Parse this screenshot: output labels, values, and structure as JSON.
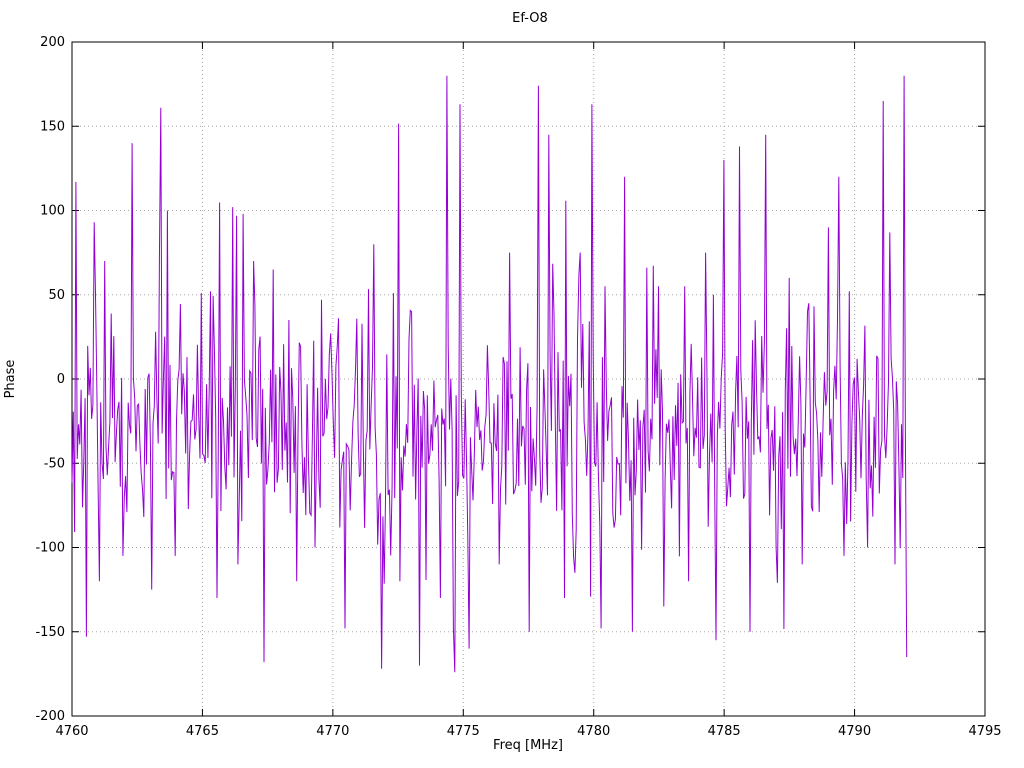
{
  "title": "Ef-O8",
  "chart_data": {
    "type": "line",
    "title": "Ef-O8",
    "xlabel": "Freq [MHz]",
    "ylabel": "Phase",
    "xlim": [
      4760,
      4795
    ],
    "ylim": [
      -200,
      200
    ],
    "xticks": [
      4760,
      4765,
      4770,
      4775,
      4780,
      4785,
      4790,
      4795
    ],
    "yticks": [
      -200,
      -150,
      -100,
      -50,
      0,
      50,
      100,
      150,
      200
    ],
    "grid": "dotted",
    "legend": "none",
    "series": [
      {
        "name": "phase",
        "color": "#9400D3",
        "x_start": 4760.0,
        "x_end": 4792.0,
        "n_points": 640,
        "noise_mean": -30,
        "noise_std": 33,
        "heavy_tail_prob": 0.08,
        "heavy_tail_scale": 2.1,
        "seed": 42,
        "clip": [
          -174,
          181
        ],
        "spikes": [
          [
            4760.15,
            117
          ],
          [
            4760.55,
            -153
          ],
          [
            4760.85,
            93
          ],
          [
            4761.05,
            -120
          ],
          [
            4761.25,
            70
          ],
          [
            4761.95,
            -105
          ],
          [
            4762.3,
            140
          ],
          [
            4763.05,
            -125
          ],
          [
            4763.4,
            161
          ],
          [
            4763.65,
            100
          ],
          [
            4763.95,
            -105
          ],
          [
            4764.95,
            51
          ],
          [
            4765.3,
            52
          ],
          [
            4765.55,
            -130
          ],
          [
            4766.15,
            102
          ],
          [
            4766.35,
            -110
          ],
          [
            4766.55,
            98
          ],
          [
            4766.95,
            70
          ],
          [
            4767.35,
            -168
          ],
          [
            4767.7,
            65
          ],
          [
            4768.3,
            35
          ],
          [
            4768.6,
            -120
          ],
          [
            4769.3,
            -100
          ],
          [
            4769.55,
            47
          ],
          [
            4770.2,
            36
          ],
          [
            4770.45,
            -148
          ],
          [
            4771.55,
            80
          ],
          [
            4771.85,
            -172
          ],
          [
            4772.3,
            51
          ],
          [
            4772.55,
            -120
          ],
          [
            4773.0,
            40
          ],
          [
            4773.3,
            -170
          ],
          [
            4774.1,
            -130
          ],
          [
            4774.35,
            180
          ],
          [
            4774.6,
            -148
          ],
          [
            4774.85,
            163
          ],
          [
            4775.2,
            -160
          ],
          [
            4775.9,
            20
          ],
          [
            4776.4,
            -110
          ],
          [
            4776.8,
            75
          ],
          [
            4777.55,
            -150
          ],
          [
            4777.9,
            174
          ],
          [
            4778.3,
            145
          ],
          [
            4778.9,
            -130
          ],
          [
            4779.3,
            -115
          ],
          [
            4779.5,
            75
          ],
          [
            4779.95,
            163
          ],
          [
            4780.3,
            -148
          ],
          [
            4780.45,
            55
          ],
          [
            4781.2,
            120
          ],
          [
            4781.5,
            -150
          ],
          [
            4782.5,
            55
          ],
          [
            4782.7,
            -135
          ],
          [
            4783.5,
            55
          ],
          [
            4783.65,
            -120
          ],
          [
            4784.3,
            75
          ],
          [
            4784.7,
            -155
          ],
          [
            4785.0,
            130
          ],
          [
            4785.6,
            138
          ],
          [
            4786.0,
            -150
          ],
          [
            4786.6,
            145
          ],
          [
            4787.0,
            -100
          ],
          [
            4787.5,
            60
          ],
          [
            4788.0,
            -110
          ],
          [
            4788.2,
            40
          ],
          [
            4789.0,
            90
          ],
          [
            4789.4,
            120
          ],
          [
            4789.6,
            -105
          ],
          [
            4789.8,
            52
          ],
          [
            4790.5,
            -100
          ],
          [
            4791.1,
            165
          ],
          [
            4791.35,
            87
          ],
          [
            4791.55,
            -110
          ],
          [
            4791.9,
            180
          ],
          [
            4792.0,
            -165
          ]
        ]
      }
    ]
  }
}
